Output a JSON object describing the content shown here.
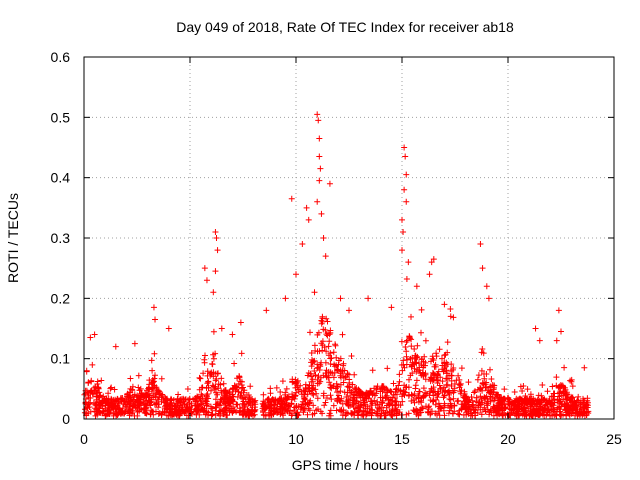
{
  "chart_data": {
    "type": "scatter",
    "title": "Day 049 of 2018, Rate Of TEC Index for receiver ab18",
    "xlabel": "GPS time / hours",
    "ylabel": "ROTI / TECUs",
    "xlim": [
      0,
      25
    ],
    "ylim": [
      0,
      0.6
    ],
    "grid": true,
    "marker": "+",
    "color": "#ff0000",
    "x_ticks": [
      0,
      5,
      10,
      15,
      20,
      25
    ],
    "x_tick_labels": [
      "0",
      "5",
      "10",
      "15",
      "20",
      "25"
    ],
    "y_ticks": [
      0,
      0.1,
      0.2,
      0.3,
      0.4,
      0.5,
      0.6
    ],
    "y_tick_labels": [
      "0",
      "0.1",
      "0.2",
      "0.3",
      "0.4",
      "0.5",
      "0.6"
    ],
    "time_span_hours": [
      0.0,
      23.8
    ],
    "data_gap_hours": [
      8.1,
      8.4
    ],
    "outliers": [
      {
        "x": 0.3,
        "y": 0.135
      },
      {
        "x": 0.5,
        "y": 0.14
      },
      {
        "x": 1.5,
        "y": 0.12
      },
      {
        "x": 2.4,
        "y": 0.125
      },
      {
        "x": 3.3,
        "y": 0.185
      },
      {
        "x": 3.35,
        "y": 0.165
      },
      {
        "x": 4.0,
        "y": 0.15
      },
      {
        "x": 5.7,
        "y": 0.25
      },
      {
        "x": 5.8,
        "y": 0.23
      },
      {
        "x": 6.1,
        "y": 0.21
      },
      {
        "x": 6.2,
        "y": 0.31
      },
      {
        "x": 6.25,
        "y": 0.3
      },
      {
        "x": 6.3,
        "y": 0.28
      },
      {
        "x": 6.2,
        "y": 0.245
      },
      {
        "x": 6.5,
        "y": 0.15
      },
      {
        "x": 7.0,
        "y": 0.14
      },
      {
        "x": 7.4,
        "y": 0.16
      },
      {
        "x": 8.6,
        "y": 0.18
      },
      {
        "x": 9.5,
        "y": 0.2
      },
      {
        "x": 9.8,
        "y": 0.365
      },
      {
        "x": 10.0,
        "y": 0.24
      },
      {
        "x": 10.3,
        "y": 0.29
      },
      {
        "x": 10.5,
        "y": 0.35
      },
      {
        "x": 10.6,
        "y": 0.33
      },
      {
        "x": 11.0,
        "y": 0.505
      },
      {
        "x": 11.05,
        "y": 0.495
      },
      {
        "x": 11.1,
        "y": 0.465
      },
      {
        "x": 11.1,
        "y": 0.435
      },
      {
        "x": 11.15,
        "y": 0.415
      },
      {
        "x": 11.1,
        "y": 0.395
      },
      {
        "x": 11.0,
        "y": 0.36
      },
      {
        "x": 11.2,
        "y": 0.34
      },
      {
        "x": 11.3,
        "y": 0.3
      },
      {
        "x": 11.6,
        "y": 0.39
      },
      {
        "x": 11.4,
        "y": 0.27
      },
      {
        "x": 12.1,
        "y": 0.2
      },
      {
        "x": 12.5,
        "y": 0.18
      },
      {
        "x": 13.4,
        "y": 0.2
      },
      {
        "x": 14.5,
        "y": 0.185
      },
      {
        "x": 15.0,
        "y": 0.33
      },
      {
        "x": 15.05,
        "y": 0.31
      },
      {
        "x": 15.1,
        "y": 0.45
      },
      {
        "x": 15.15,
        "y": 0.435
      },
      {
        "x": 15.2,
        "y": 0.405
      },
      {
        "x": 15.1,
        "y": 0.38
      },
      {
        "x": 15.2,
        "y": 0.36
      },
      {
        "x": 15.0,
        "y": 0.28
      },
      {
        "x": 15.3,
        "y": 0.26
      },
      {
        "x": 15.7,
        "y": 0.22
      },
      {
        "x": 16.4,
        "y": 0.26
      },
      {
        "x": 16.5,
        "y": 0.265
      },
      {
        "x": 16.3,
        "y": 0.24
      },
      {
        "x": 17.0,
        "y": 0.19
      },
      {
        "x": 17.3,
        "y": 0.17
      },
      {
        "x": 18.7,
        "y": 0.29
      },
      {
        "x": 18.8,
        "y": 0.25
      },
      {
        "x": 19.0,
        "y": 0.22
      },
      {
        "x": 19.1,
        "y": 0.2
      },
      {
        "x": 21.3,
        "y": 0.15
      },
      {
        "x": 21.5,
        "y": 0.13
      },
      {
        "x": 22.4,
        "y": 0.18
      },
      {
        "x": 22.5,
        "y": 0.145
      },
      {
        "x": 22.3,
        "y": 0.13
      },
      {
        "x": 23.6,
        "y": 0.085
      }
    ]
  }
}
